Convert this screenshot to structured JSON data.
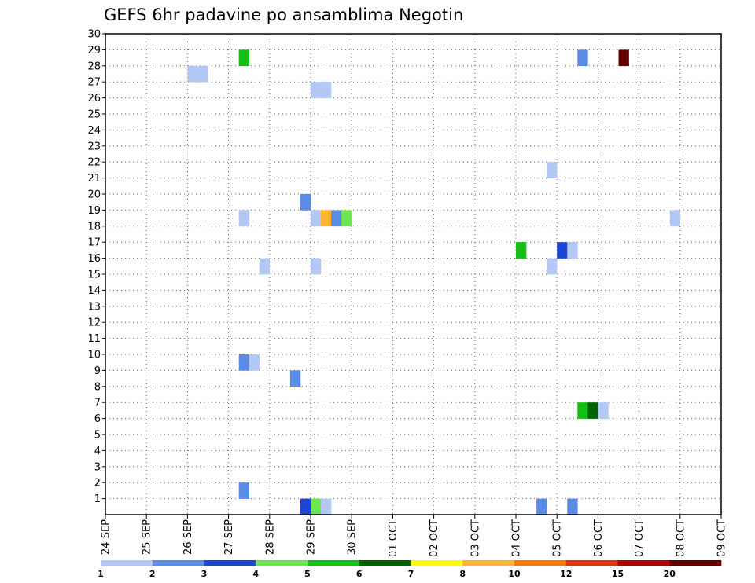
{
  "chart_data": {
    "type": "heatmap",
    "title": "GEFS 6hr padavine po ansamblima Negotin",
    "xlabel": "",
    "ylabel": "",
    "x_ticks": [
      "24 SEP",
      "25 SEP",
      "26 SEP",
      "27 SEP",
      "28 SEP",
      "29 SEP",
      "30 SEP",
      "01 OCT",
      "02 OCT",
      "03 OCT",
      "04 OCT",
      "05 OCT",
      "06 OCT",
      "07 OCT",
      "08 OCT",
      "09 OCT"
    ],
    "y_ticks": [
      1,
      2,
      3,
      4,
      5,
      6,
      7,
      8,
      9,
      10,
      11,
      12,
      13,
      14,
      15,
      16,
      17,
      18,
      19,
      20,
      21,
      22,
      23,
      24,
      25,
      26,
      27,
      28,
      29,
      30
    ],
    "ylim": [
      0,
      30
    ],
    "grid": true,
    "time_step_hours": 6,
    "colorbar": {
      "levels": [
        "1",
        "2",
        "3",
        "4",
        "5",
        "6",
        "7",
        "8",
        "10",
        "12",
        "15",
        "20"
      ],
      "colors": [
        "#b4c8f5",
        "#5a8ce6",
        "#1e46d2",
        "#6ee650",
        "#14be14",
        "#006400",
        "#ffff00",
        "#ffb432",
        "#ff7800",
        "#e63214",
        "#b40000",
        "#640000"
      ]
    },
    "cells": [
      {
        "day": "26 SEP",
        "hour": 0,
        "ensemble": 27,
        "mm": 1
      },
      {
        "day": "26 SEP",
        "hour": 6,
        "ensemble": 27,
        "mm": 1
      },
      {
        "day": "27 SEP",
        "hour": 6,
        "ensemble": 28,
        "mm": 5
      },
      {
        "day": "27 SEP",
        "hour": 6,
        "ensemble": 18,
        "mm": 1
      },
      {
        "day": "27 SEP",
        "hour": 6,
        "ensemble": 9,
        "mm": 2
      },
      {
        "day": "27 SEP",
        "hour": 12,
        "ensemble": 9,
        "mm": 1
      },
      {
        "day": "27 SEP",
        "hour": 6,
        "ensemble": 1,
        "mm": 2
      },
      {
        "day": "27 SEP",
        "hour": 18,
        "ensemble": 15,
        "mm": 1
      },
      {
        "day": "28 SEP",
        "hour": 12,
        "ensemble": 8,
        "mm": 2
      },
      {
        "day": "28 SEP",
        "hour": 18,
        "ensemble": 19,
        "mm": 2
      },
      {
        "day": "28 SEP",
        "hour": 18,
        "ensemble": 0,
        "mm": 3
      },
      {
        "day": "29 SEP",
        "hour": 0,
        "ensemble": 26,
        "mm": 1
      },
      {
        "day": "29 SEP",
        "hour": 6,
        "ensemble": 26,
        "mm": 1
      },
      {
        "day": "29 SEP",
        "hour": 0,
        "ensemble": 18,
        "mm": 1
      },
      {
        "day": "29 SEP",
        "hour": 6,
        "ensemble": 18,
        "mm": 8
      },
      {
        "day": "29 SEP",
        "hour": 12,
        "ensemble": 18,
        "mm": 2
      },
      {
        "day": "29 SEP",
        "hour": 0,
        "ensemble": 15,
        "mm": 1
      },
      {
        "day": "29 SEP",
        "hour": 0,
        "ensemble": 0,
        "mm": 4
      },
      {
        "day": "29 SEP",
        "hour": 6,
        "ensemble": 0,
        "mm": 1
      },
      {
        "day": "29 SEP",
        "hour": 18,
        "ensemble": 18,
        "mm": 4
      },
      {
        "day": "04 OCT",
        "hour": 0,
        "ensemble": 16,
        "mm": 5
      },
      {
        "day": "04 OCT",
        "hour": 12,
        "ensemble": 0,
        "mm": 2
      },
      {
        "day": "04 OCT",
        "hour": 18,
        "ensemble": 21,
        "mm": 1
      },
      {
        "day": "04 OCT",
        "hour": 18,
        "ensemble": 15,
        "mm": 1
      },
      {
        "day": "05 OCT",
        "hour": 0,
        "ensemble": 16,
        "mm": 3
      },
      {
        "day": "05 OCT",
        "hour": 6,
        "ensemble": 16,
        "mm": 1
      },
      {
        "day": "05 OCT",
        "hour": 6,
        "ensemble": 0,
        "mm": 2
      },
      {
        "day": "05 OCT",
        "hour": 12,
        "ensemble": 6,
        "mm": 5
      },
      {
        "day": "05 OCT",
        "hour": 18,
        "ensemble": 6,
        "mm": 6
      },
      {
        "day": "05 OCT",
        "hour": 12,
        "ensemble": 28,
        "mm": 2
      },
      {
        "day": "06 OCT",
        "hour": 0,
        "ensemble": 6,
        "mm": 1
      },
      {
        "day": "06 OCT",
        "hour": 12,
        "ensemble": 28,
        "mm": 20
      },
      {
        "day": "07 OCT",
        "hour": 18,
        "ensemble": 18,
        "mm": 1
      }
    ]
  }
}
